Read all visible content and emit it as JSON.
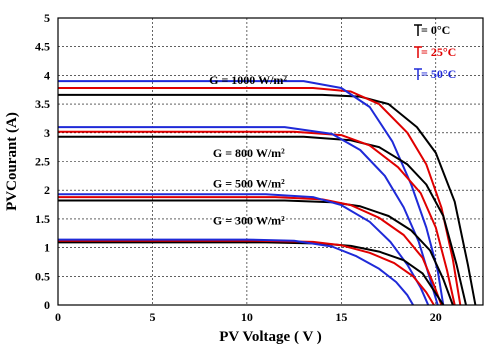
{
  "chart_data": {
    "type": "line",
    "xlabel": "PV Voltage ( V )",
    "ylabel": "PVCourant (A)",
    "xlim": [
      0,
      22.5
    ],
    "ylim": [
      0,
      5
    ],
    "xticks": [
      "0",
      "5",
      "10",
      "15",
      "20"
    ],
    "yticks": [
      "0",
      "0.5",
      "1",
      "1.5",
      "2",
      "2.5",
      "3",
      "3.5",
      "4",
      "4.5",
      "5"
    ],
    "grid": true,
    "legend_position": "top-right",
    "legend": [
      {
        "label": "= 0°C",
        "color": "#000000"
      },
      {
        "label": "= 25°C",
        "color": "#e00000"
      },
      {
        "label": "= 50°C",
        "color": "#1f2ad8"
      }
    ],
    "annotations": [
      {
        "text": "G = 1000 W/m²",
        "x": 8.0,
        "y": 3.85
      },
      {
        "text": "G = 800 W/m²",
        "x": 8.2,
        "y": 2.58
      },
      {
        "text": "G = 500 W/m²",
        "x": 8.2,
        "y": 2.05
      },
      {
        "text": "G = 300 W/m²",
        "x": 8.2,
        "y": 1.4
      }
    ],
    "series": [
      {
        "group": "G = 1000 W/m²",
        "color": "#000000",
        "x": [
          0,
          14,
          16,
          17.5,
          19,
          20,
          21,
          21.7,
          22.1
        ],
        "y": [
          3.66,
          3.66,
          3.63,
          3.5,
          3.1,
          2.65,
          1.8,
          0.7,
          0
        ]
      },
      {
        "group": "G = 1000 W/m²",
        "color": "#e00000",
        "x": [
          0,
          13.5,
          15.5,
          17,
          18.5,
          19.5,
          20.3,
          20.9,
          21.3
        ],
        "y": [
          3.78,
          3.78,
          3.72,
          3.5,
          3.0,
          2.45,
          1.7,
          0.8,
          0
        ]
      },
      {
        "group": "G = 1000 W/m²",
        "color": "#1f2ad8",
        "x": [
          0,
          13,
          15,
          16.5,
          17.7,
          18.7,
          19.5,
          20.1,
          20.4
        ],
        "y": [
          3.9,
          3.9,
          3.78,
          3.45,
          2.85,
          2.1,
          1.35,
          0.6,
          0
        ]
      },
      {
        "group": "G = 800 W/m²",
        "color": "#000000",
        "x": [
          0,
          13,
          15.5,
          17,
          18.5,
          19.5,
          20.4,
          21.1,
          21.6
        ],
        "y": [
          2.93,
          2.93,
          2.87,
          2.75,
          2.45,
          2.1,
          1.55,
          0.7,
          0
        ]
      },
      {
        "group": "G = 800 W/m²",
        "color": "#e00000",
        "x": [
          0,
          12.5,
          15,
          16.5,
          18,
          19.2,
          20,
          20.6,
          21.0
        ],
        "y": [
          3.02,
          3.02,
          2.96,
          2.78,
          2.4,
          1.95,
          1.35,
          0.6,
          0
        ]
      },
      {
        "group": "G = 800 W/m²",
        "color": "#1f2ad8",
        "x": [
          0,
          12,
          14.5,
          16,
          17.3,
          18.3,
          19.1,
          19.7,
          20.1
        ],
        "y": [
          3.1,
          3.1,
          2.98,
          2.7,
          2.25,
          1.7,
          1.1,
          0.45,
          0
        ]
      },
      {
        "group": "G = 500 W/m²",
        "color": "#000000",
        "x": [
          0,
          12,
          14.5,
          16,
          17.5,
          18.7,
          19.7,
          20.4,
          20.9
        ],
        "y": [
          1.82,
          1.82,
          1.79,
          1.72,
          1.55,
          1.3,
          0.95,
          0.45,
          0
        ]
      },
      {
        "group": "G = 500 W/m²",
        "color": "#e00000",
        "x": [
          0,
          11.5,
          14,
          15.5,
          17,
          18.3,
          19.3,
          19.9,
          20.3
        ],
        "y": [
          1.88,
          1.88,
          1.84,
          1.74,
          1.52,
          1.22,
          0.82,
          0.35,
          0
        ]
      },
      {
        "group": "G = 500 W/m²",
        "color": "#1f2ad8",
        "x": [
          0,
          11,
          13.5,
          15,
          16.5,
          17.6,
          18.5,
          19.2,
          19.6
        ],
        "y": [
          1.93,
          1.93,
          1.88,
          1.74,
          1.45,
          1.1,
          0.7,
          0.3,
          0
        ]
      },
      {
        "group": "G = 300 W/m²",
        "color": "#000000",
        "x": [
          0,
          11,
          14,
          15.5,
          17,
          18.3,
          19.3,
          19.9,
          20.4
        ],
        "y": [
          1.09,
          1.09,
          1.07,
          1.03,
          0.93,
          0.78,
          0.55,
          0.25,
          0
        ]
      },
      {
        "group": "G = 300 W/m²",
        "color": "#e00000",
        "x": [
          0,
          10.5,
          13.5,
          15,
          16.5,
          17.8,
          18.8,
          19.5,
          19.9
        ],
        "y": [
          1.12,
          1.12,
          1.1,
          1.04,
          0.91,
          0.73,
          0.5,
          0.22,
          0
        ]
      },
      {
        "group": "G = 300 W/m²",
        "color": "#1f2ad8",
        "x": [
          0,
          10,
          12.5,
          14.5,
          15.8,
          17,
          17.9,
          18.5,
          18.8
        ],
        "y": [
          1.14,
          1.14,
          1.12,
          1.02,
          0.85,
          0.63,
          0.4,
          0.17,
          0
        ]
      }
    ]
  }
}
